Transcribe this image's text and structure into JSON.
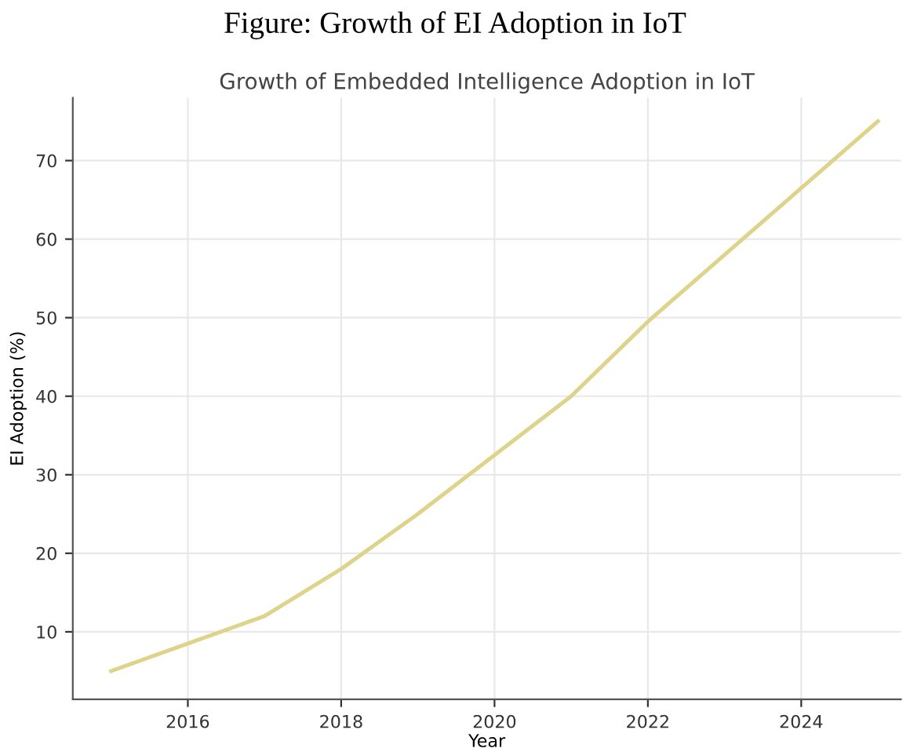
{
  "chart_data": {
    "type": "line",
    "title": "Growth of Embedded Intelligence Adoption in IoT",
    "annotations": [
      "Figure: Growth of EI Adoption in IoT"
    ],
    "xlabel": "Year",
    "ylabel": "EI Adoption (%)",
    "x": [
      2015,
      2016,
      2017,
      2018,
      2019,
      2020,
      2021,
      2022,
      2023,
      2024,
      2025
    ],
    "series": [
      {
        "color": "#ddd38a",
        "values": [
          5,
          8.5,
          12,
          18,
          25,
          32.5,
          40,
          49.5,
          58,
          66.5,
          75
        ]
      }
    ],
    "xlim": [
      2014.5,
      2025.3
    ],
    "ylim": [
      1.4,
      78
    ],
    "xticks": [
      2016,
      2018,
      2020,
      2022,
      2024
    ],
    "yticks": [
      10,
      20,
      30,
      40,
      50,
      60,
      70
    ],
    "grid": true,
    "marker": "none",
    "line_style": "solid"
  }
}
